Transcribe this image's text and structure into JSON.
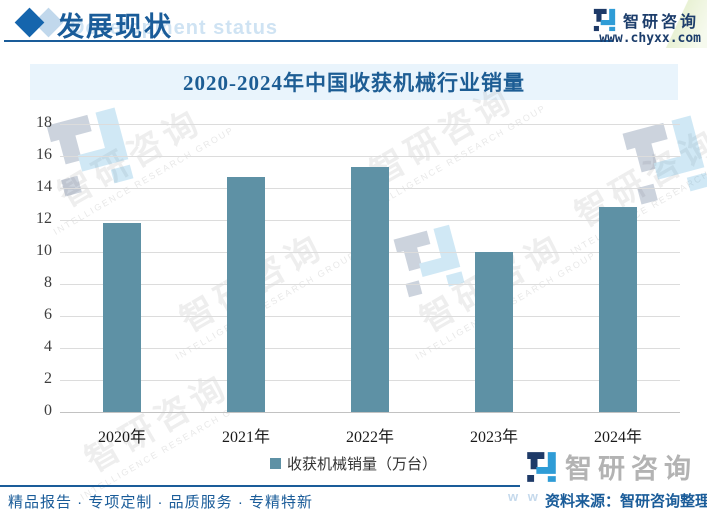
{
  "header": {
    "section_title": "发展现状",
    "section_title_en": "Development status",
    "brand_name": "智研咨询",
    "brand_site": "www.chyxx.com"
  },
  "chart_data": {
    "type": "bar",
    "title": "2020-2024年中国收获机械行业销量",
    "categories": [
      "2020年",
      "2021年",
      "2022年",
      "2023年",
      "2024年"
    ],
    "values": [
      11.8,
      14.7,
      15.3,
      10,
      12.8
    ],
    "series_name": "收获机械销量（万台）",
    "xlabel": "",
    "ylabel": "",
    "ylim": [
      0,
      18
    ],
    "ytick_step": 2,
    "grid": true,
    "legend_position": "bottom",
    "bar_color": "#5e91a5"
  },
  "legend": {
    "label": "收获机械销量（万台）"
  },
  "watermark": {
    "cn": "智研咨询",
    "en": "INTELLIGENCE RESEARCH GROUP",
    "www_fragment": "w w w"
  },
  "footer": {
    "tagline": "精品报告 · 专项定制 · 品质服务 · 专精特新",
    "source": "资料来源：智研咨询整理",
    "brand_name": "智研咨询"
  },
  "colors": {
    "accent": "#1a5c99",
    "bar": "#5e91a5",
    "title_bg": "#e9f4fc",
    "gridline": "#dcdcdc",
    "gray_logo": "#b3b3b3"
  }
}
